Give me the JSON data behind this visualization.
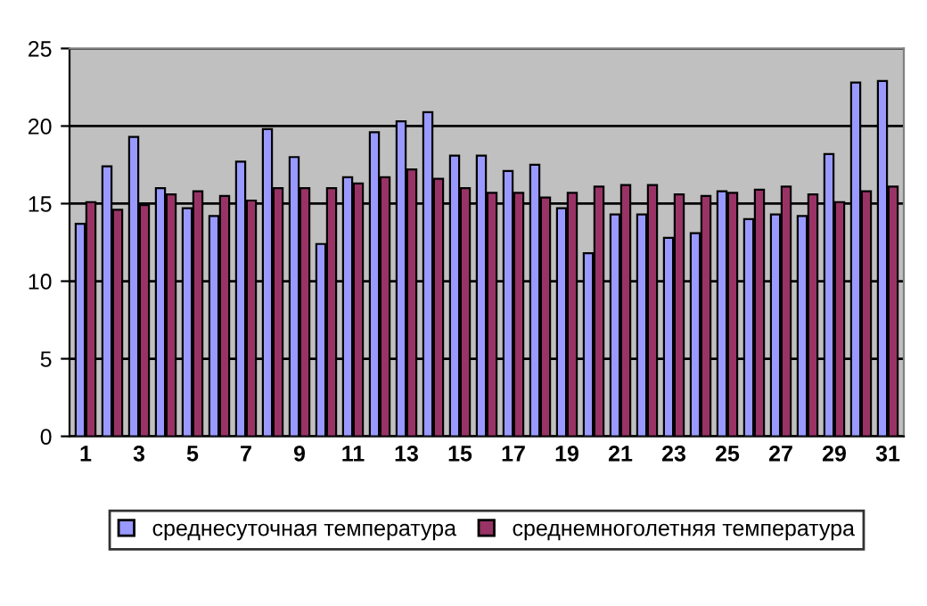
{
  "chart_data": {
    "type": "bar",
    "categories": [
      "1",
      null,
      "3",
      null,
      "5",
      null,
      "7",
      null,
      "9",
      null,
      "11",
      null,
      "13",
      null,
      "15",
      null,
      "17",
      null,
      "19",
      null,
      "21",
      null,
      "23",
      null,
      "25",
      null,
      "27",
      null,
      "29",
      null,
      "31"
    ],
    "series": [
      {
        "name": "среднесуточная температура",
        "color": "#9999ff",
        "values": [
          13.7,
          17.4,
          19.3,
          16.0,
          14.7,
          14.2,
          17.7,
          19.8,
          18.0,
          12.4,
          16.7,
          19.6,
          20.3,
          20.9,
          18.1,
          18.1,
          17.1,
          17.5,
          14.7,
          11.8,
          14.3,
          14.3,
          12.8,
          13.1,
          15.8,
          14.0,
          14.3,
          14.2,
          18.2,
          22.8,
          22.9
        ]
      },
      {
        "name": "среднемноголетняя температура",
        "color": "#993366",
        "values": [
          15.1,
          14.6,
          14.9,
          15.6,
          15.8,
          15.5,
          15.2,
          16.0,
          16.0,
          16.0,
          16.3,
          16.7,
          17.2,
          16.6,
          16.0,
          15.7,
          15.7,
          15.4,
          15.7,
          16.1,
          16.2,
          16.2,
          15.6,
          15.5,
          15.7,
          15.9,
          16.1,
          15.6,
          15.1,
          15.8,
          16.1
        ]
      }
    ],
    "ylim": [
      0,
      25
    ],
    "yticks": [
      0,
      5,
      10,
      15,
      20,
      25
    ],
    "grid": "y",
    "legend": "bottom"
  }
}
